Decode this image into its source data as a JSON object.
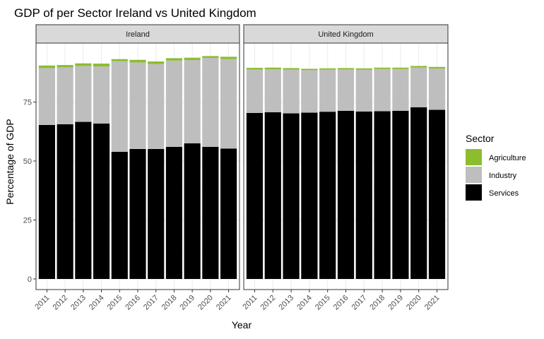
{
  "chart_data": {
    "type": "bar",
    "stacked": true,
    "title": "GDP of per Sector Ireland vs United Kingdom",
    "xlabel": "Year",
    "ylabel": "Percentage of GDP",
    "ylim": [
      0,
      100
    ],
    "yticks": [
      0,
      25,
      50,
      75
    ],
    "categories": [
      "2011",
      "2012",
      "2013",
      "2014",
      "2015",
      "2016",
      "2017",
      "2018",
      "2019",
      "2020",
      "2021"
    ],
    "legend": {
      "title": "Sector",
      "placement": "right",
      "entries": [
        "Agriculture",
        "Industry",
        "Services"
      ]
    },
    "colors": {
      "Agriculture": "#8cbd2f",
      "Industry": "#bebebe",
      "Services": "#000000",
      "strip_fill": "#d9d9d9",
      "grid_major": "#ebebeb",
      "grid_minor": "#f5f5f5"
    },
    "stack_order": [
      "Services",
      "Industry",
      "Agriculture"
    ],
    "facets": [
      {
        "name": "Ireland",
        "series": [
          {
            "name": "Services",
            "values": [
              65.3,
              65.6,
              66.6,
              65.9,
              53.9,
              55.1,
              55.1,
              56.0,
              57.5,
              56.0,
              55.3
            ]
          },
          {
            "name": "Industry",
            "values": [
              24.1,
              24.1,
              23.7,
              24.2,
              38.4,
              36.7,
              36.0,
              36.6,
              35.3,
              37.7,
              37.9
            ]
          },
          {
            "name": "Agriculture",
            "values": [
              1.1,
              1.0,
              1.1,
              1.2,
              0.9,
              1.1,
              1.1,
              1.0,
              1.0,
              0.8,
              1.0
            ]
          }
        ]
      },
      {
        "name": "United Kingdom",
        "series": [
          {
            "name": "Services",
            "values": [
              70.4,
              70.7,
              70.2,
              70.5,
              70.9,
              71.3,
              71.0,
              71.1,
              71.3,
              72.8,
              71.7
            ]
          },
          {
            "name": "Industry",
            "values": [
              18.4,
              18.2,
              18.5,
              18.0,
              17.8,
              17.5,
              17.7,
              17.9,
              17.7,
              16.8,
              17.5
            ]
          },
          {
            "name": "Agriculture",
            "values": [
              0.7,
              0.7,
              0.7,
              0.6,
              0.6,
              0.6,
              0.6,
              0.6,
              0.6,
              0.7,
              0.7
            ]
          }
        ]
      }
    ]
  }
}
